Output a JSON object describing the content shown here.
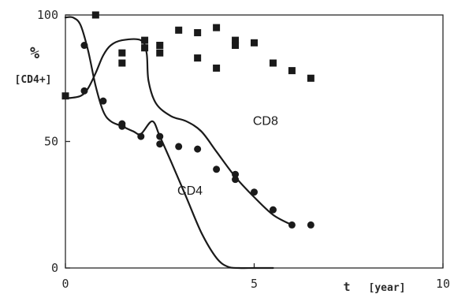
{
  "chart_data": {
    "type": "line",
    "title": "",
    "ylabel_symbol": "%",
    "ylabel": "[CD4+]",
    "xlabel_var": "t",
    "xlabel_unit": "[year]",
    "xlim": [
      0,
      10
    ],
    "ylim": [
      0,
      100
    ],
    "x_ticks": [
      0,
      5,
      10
    ],
    "y_ticks": [
      0,
      50,
      100
    ],
    "grid": false,
    "colors": {
      "ink": "#1a1a1a",
      "axis": "#2a2a2a",
      "background": "#ffffff"
    },
    "series": [
      {
        "name": "CD8",
        "kind": "model-curve",
        "x": [
          0.0,
          0.4,
          0.6,
          0.8,
          1.0,
          1.2,
          1.5,
          2.0,
          2.15,
          2.2,
          2.4,
          2.8,
          3.2,
          3.6,
          4.0,
          4.5,
          5.0,
          5.5,
          6.0
        ],
        "y": [
          67.0,
          68.0,
          71.0,
          77.0,
          84.0,
          88.0,
          90.0,
          90.0,
          85.0,
          74.0,
          65.0,
          60.0,
          58.0,
          54.0,
          46.0,
          36.0,
          28.0,
          21.0,
          17.0
        ]
      },
      {
        "name": "CD4",
        "kind": "model-curve",
        "x": [
          0.0,
          0.2,
          0.4,
          0.6,
          0.8,
          1.0,
          1.2,
          1.5,
          1.8,
          2.0,
          2.3,
          2.5,
          2.8,
          3.2,
          3.6,
          4.0,
          4.3,
          4.6,
          5.0,
          5.5
        ],
        "y": [
          99.0,
          99.0,
          96.0,
          86.0,
          72.0,
          62.0,
          58.0,
          56.0,
          54.0,
          53.0,
          58.0,
          52.0,
          42.0,
          28.0,
          14.0,
          4.0,
          0.5,
          0.0,
          0.0,
          0.0
        ]
      },
      {
        "name": "CD8 data",
        "kind": "data-markers",
        "marker": "square",
        "points": [
          [
            0.0,
            68
          ],
          [
            0.8,
            100
          ],
          [
            1.5,
            85
          ],
          [
            1.5,
            81
          ],
          [
            2.1,
            90
          ],
          [
            2.1,
            87
          ],
          [
            2.5,
            88
          ],
          [
            2.5,
            85
          ],
          [
            3.0,
            94
          ],
          [
            3.5,
            93
          ],
          [
            3.5,
            83
          ],
          [
            4.0,
            95
          ],
          [
            4.0,
            79
          ],
          [
            4.5,
            90
          ],
          [
            4.5,
            88
          ],
          [
            5.0,
            89
          ],
          [
            5.5,
            81
          ],
          [
            6.0,
            78
          ],
          [
            6.5,
            75
          ]
        ]
      },
      {
        "name": "CD4 data",
        "kind": "data-markers",
        "marker": "circle",
        "points": [
          [
            0.5,
            88
          ],
          [
            0.5,
            70
          ],
          [
            1.0,
            66
          ],
          [
            1.5,
            57
          ],
          [
            1.5,
            56
          ],
          [
            2.0,
            52
          ],
          [
            2.5,
            52
          ],
          [
            2.5,
            49
          ],
          [
            3.0,
            48
          ],
          [
            3.5,
            47
          ],
          [
            4.0,
            39
          ],
          [
            4.5,
            37
          ],
          [
            4.5,
            35
          ],
          [
            5.0,
            30
          ],
          [
            5.5,
            23
          ],
          [
            6.0,
            17
          ],
          [
            6.5,
            17
          ]
        ]
      }
    ],
    "annotations": [
      {
        "text": "CD8",
        "x": 5.3,
        "y": 56.5
      },
      {
        "text": "CD4",
        "x": 3.3,
        "y": 29.0
      }
    ]
  }
}
